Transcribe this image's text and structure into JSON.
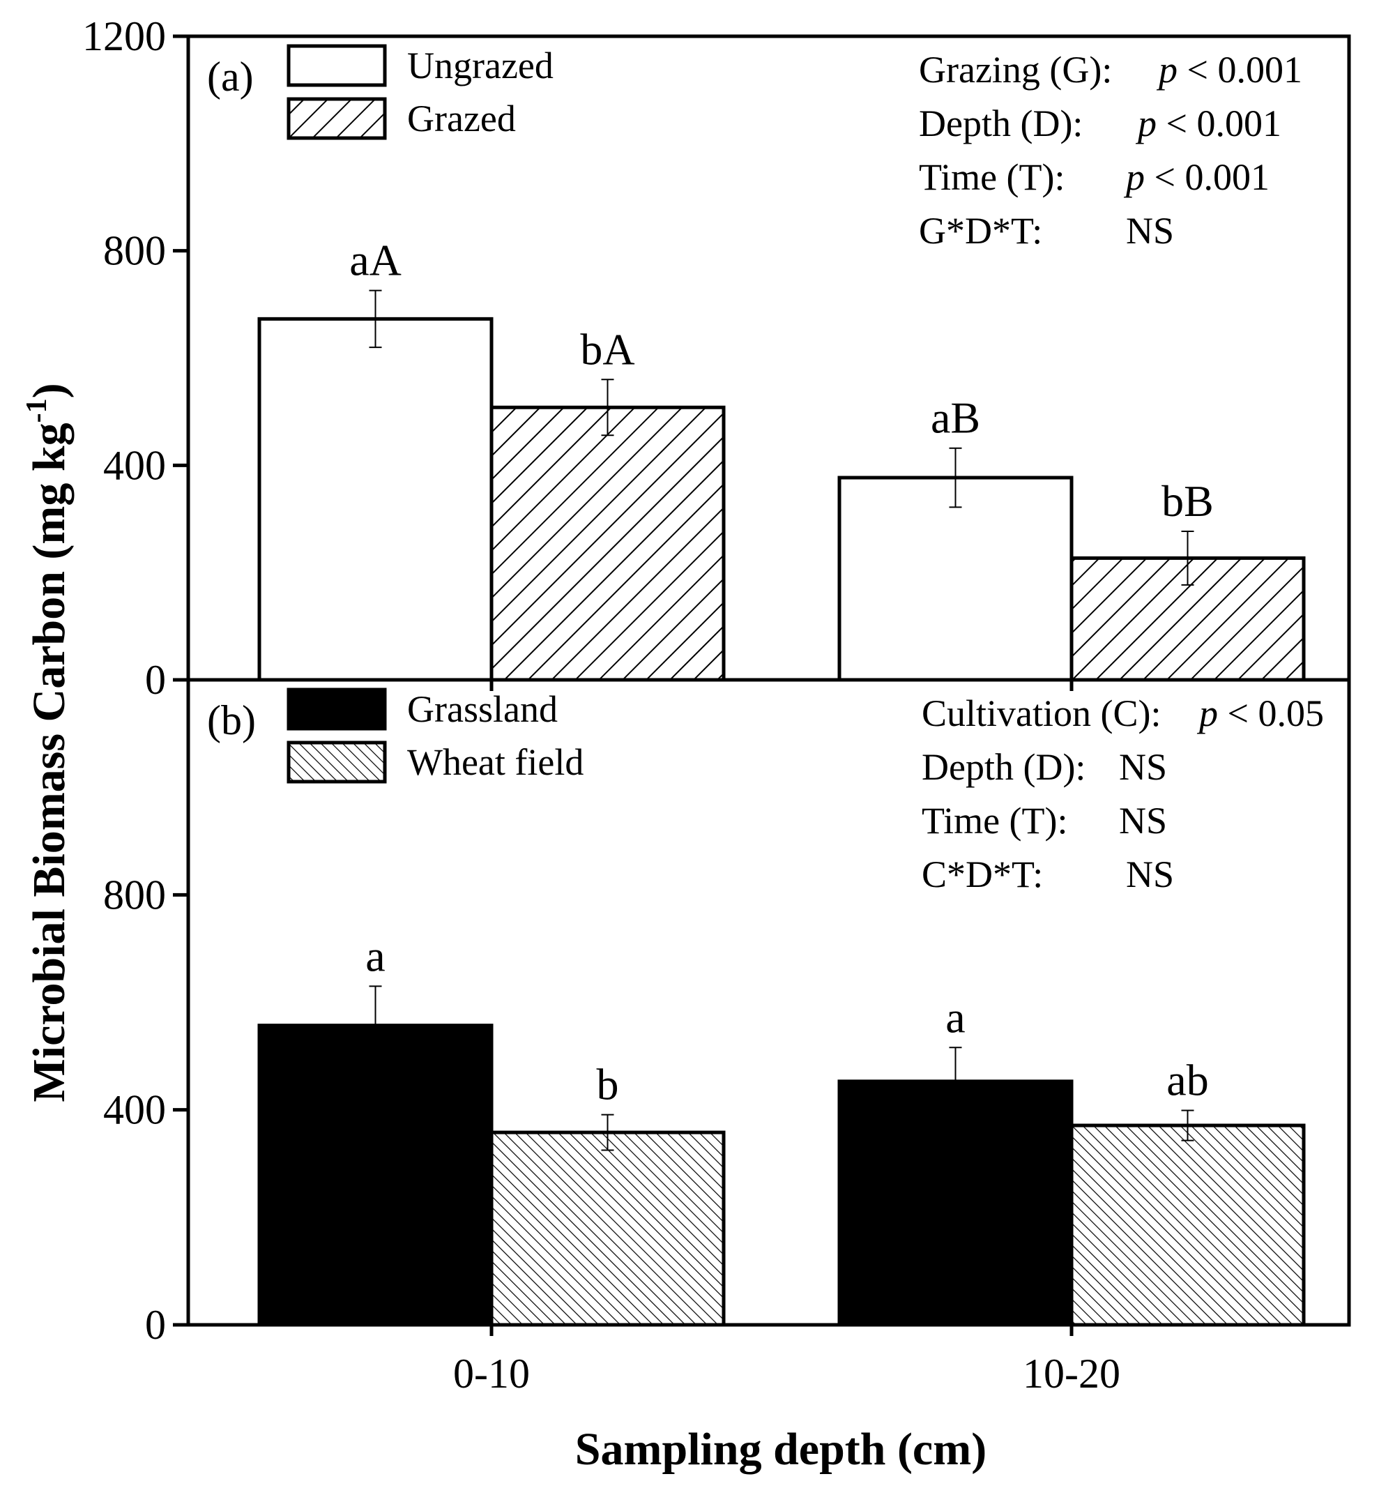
{
  "figure": {
    "y_axis_title": "Microbial Biomass Carbon (mg kg",
    "y_axis_title_sup": "-1",
    "y_axis_title_close": ")",
    "x_axis_title": "Sampling depth (cm)"
  },
  "chart_data": [
    {
      "panel_label": "(a)",
      "type": "bar",
      "categories": [
        "0-10",
        "10-20"
      ],
      "ylim": [
        0,
        1200
      ],
      "yticks": [
        0,
        400,
        800,
        1200
      ],
      "series": [
        {
          "name": "Ungrazed",
          "values": [
            673,
            377
          ],
          "errors": [
            53,
            55
          ],
          "fill": "white",
          "letters": [
            "aA",
            "aB"
          ]
        },
        {
          "name": "Grazed",
          "values": [
            508,
            227
          ],
          "errors": [
            52,
            50
          ],
          "fill": "hatch-wide",
          "letters": [
            "bA",
            "bB"
          ]
        }
      ],
      "stats": [
        {
          "label": "Grazing (G):",
          "p": "p",
          "value": " < 0.001"
        },
        {
          "label": "Depth (D):",
          "p": "p",
          "value": " < 0.001"
        },
        {
          "label": "Time (T):",
          "p": "p",
          "value": " < 0.001"
        },
        {
          "label": "G*D*T:",
          "p": "",
          "value": "NS"
        }
      ]
    },
    {
      "panel_label": "(b)",
      "type": "bar",
      "categories": [
        "0-10",
        "10-20"
      ],
      "ylim": [
        0,
        1200
      ],
      "yticks": [
        0,
        400,
        800
      ],
      "series": [
        {
          "name": "Grassland",
          "values": [
            557,
            453
          ],
          "errors": [
            73,
            63
          ],
          "fill": "black",
          "letters": [
            "a",
            "a"
          ]
        },
        {
          "name": "Wheat field",
          "values": [
            358,
            371
          ],
          "errors": [
            33,
            28
          ],
          "fill": "hatch-dense",
          "letters": [
            "b",
            "ab"
          ]
        }
      ],
      "stats": [
        {
          "label": "Cultivation (C):",
          "p": "p",
          "value": " < 0.05"
        },
        {
          "label": "Depth (D):",
          "p": "",
          "value": "NS"
        },
        {
          "label": "Time (T):",
          "p": "",
          "value": "NS"
        },
        {
          "label": "C*D*T:",
          "p": "",
          "value": "NS"
        }
      ]
    }
  ]
}
